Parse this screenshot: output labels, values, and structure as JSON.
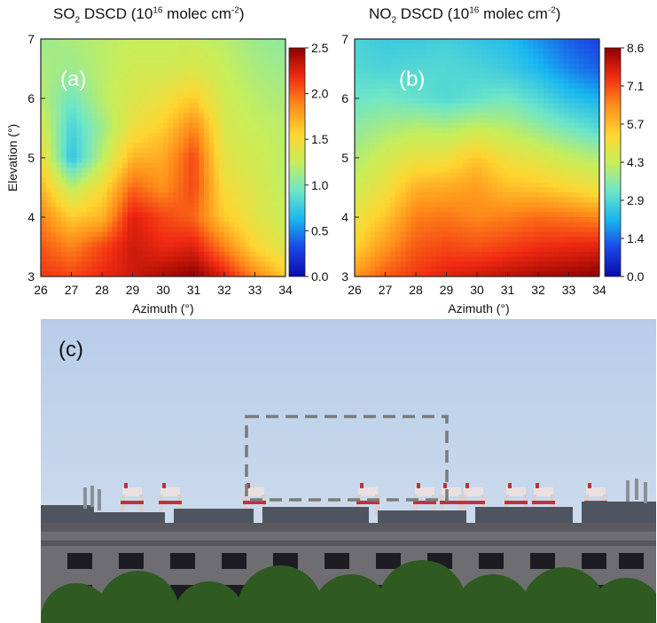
{
  "colors": {
    "scale": [
      "#0a0aa8",
      "#1a46e6",
      "#19b6f0",
      "#6ee6c8",
      "#c8ee5a",
      "#ffd531",
      "#ff8c1a",
      "#f02a12",
      "#8c0000"
    ],
    "frame": "#222222",
    "sky_top": "#b7cde9",
    "sky_bottom": "#d6e1ef",
    "building": "#6e6e72",
    "trees": "#2f5a22",
    "dashed_box": "#7a7a7a"
  },
  "chart_data": [
    {
      "type": "heatmap",
      "panel_label": "(a)",
      "title_main": "SO",
      "title_sub": "2",
      "title_mid": " DSCD (10",
      "title_sup": "16",
      "title_unit": " molec cm",
      "title_unit_sup": "-2",
      "title_close": ")",
      "xlabel": "Azimuth (°)",
      "ylabel": "Elevation (°)",
      "xlim": [
        26,
        34
      ],
      "ylim": [
        3,
        7
      ],
      "x_ticks": [
        "26",
        "27",
        "28",
        "29",
        "30",
        "31",
        "32",
        "33",
        "34"
      ],
      "y_ticks": [
        "3",
        "4",
        "5",
        "6",
        "7"
      ],
      "colorbar_ticks": [
        "0.0",
        "0.5",
        "1.0",
        "1.5",
        "2.0",
        "2.5"
      ],
      "colorbar_range": [
        0,
        2.5
      ],
      "x": [
        26,
        27,
        28,
        29,
        30,
        31,
        32,
        33,
        34
      ],
      "y": [
        3,
        3.5,
        4,
        4.5,
        5,
        5.5,
        6,
        6.5,
        7
      ],
      "values": [
        [
          2.15,
          2.1,
          2.2,
          2.3,
          2.4,
          2.5,
          2.25,
          1.9,
          1.6
        ],
        [
          2.05,
          1.9,
          2.1,
          2.3,
          2.2,
          2.25,
          1.9,
          1.55,
          1.35
        ],
        [
          1.9,
          1.6,
          1.7,
          2.25,
          2.1,
          2.0,
          1.6,
          1.4,
          1.25
        ],
        [
          1.7,
          1.2,
          1.5,
          2.0,
          1.85,
          2.1,
          1.5,
          1.35,
          1.2
        ],
        [
          1.5,
          0.7,
          1.2,
          1.7,
          1.75,
          2.1,
          1.4,
          1.3,
          1.2
        ],
        [
          1.35,
          0.8,
          1.1,
          1.45,
          1.6,
          1.9,
          1.35,
          1.25,
          1.2
        ],
        [
          1.2,
          0.95,
          1.2,
          1.35,
          1.45,
          1.6,
          1.3,
          1.2,
          1.15
        ],
        [
          1.15,
          1.1,
          1.2,
          1.3,
          1.3,
          1.35,
          1.25,
          1.15,
          1.1
        ],
        [
          1.1,
          1.15,
          1.2,
          1.25,
          1.25,
          1.25,
          1.2,
          1.1,
          1.05
        ]
      ]
    },
    {
      "type": "heatmap",
      "panel_label": "(b)",
      "title_main": "NO",
      "title_sub": "2",
      "title_mid": " DSCD (10",
      "title_sup": "16",
      "title_unit": " molec cm",
      "title_unit_sup": "-2",
      "title_close": ")",
      "xlabel": "Azimuth (°)",
      "ylabel": "",
      "xlim": [
        26,
        34
      ],
      "ylim": [
        3,
        7
      ],
      "x_ticks": [
        "26",
        "27",
        "28",
        "29",
        "30",
        "31",
        "32",
        "33",
        "34"
      ],
      "y_ticks": [
        "3",
        "4",
        "5",
        "6",
        "7"
      ],
      "colorbar_ticks": [
        "0.0",
        "1.4",
        "2.9",
        "4.3",
        "5.7",
        "7.1",
        "8.6"
      ],
      "colorbar_range": [
        0,
        8.6
      ],
      "x": [
        26,
        27,
        28,
        29,
        30,
        31,
        32,
        33,
        34
      ],
      "y": [
        3,
        3.5,
        4,
        4.5,
        5,
        5.5,
        6,
        6.5,
        7
      ],
      "values": [
        [
          6.3,
          7.0,
          7.4,
          7.7,
          7.9,
          8.1,
          8.3,
          8.4,
          8.6
        ],
        [
          5.4,
          6.3,
          7.0,
          7.2,
          7.1,
          7.3,
          7.5,
          7.6,
          7.7
        ],
        [
          4.9,
          5.6,
          6.6,
          6.7,
          6.5,
          6.6,
          6.8,
          6.7,
          6.5
        ],
        [
          4.4,
          5.0,
          5.9,
          6.0,
          6.2,
          5.7,
          5.6,
          5.3,
          4.9
        ],
        [
          4.0,
          4.5,
          4.9,
          5.0,
          5.6,
          5.0,
          4.7,
          4.3,
          4.0
        ],
        [
          3.6,
          3.9,
          4.1,
          4.0,
          4.3,
          4.1,
          3.7,
          3.3,
          2.9
        ],
        [
          3.2,
          3.3,
          3.1,
          2.9,
          3.1,
          3.3,
          2.9,
          2.4,
          2.1
        ],
        [
          2.9,
          2.8,
          2.9,
          2.9,
          2.8,
          2.6,
          2.2,
          1.7,
          1.3
        ],
        [
          2.8,
          2.6,
          2.6,
          2.7,
          2.5,
          2.3,
          1.8,
          1.3,
          1.0
        ]
      ]
    }
  ],
  "photo": {
    "panel_label": "(c)"
  }
}
